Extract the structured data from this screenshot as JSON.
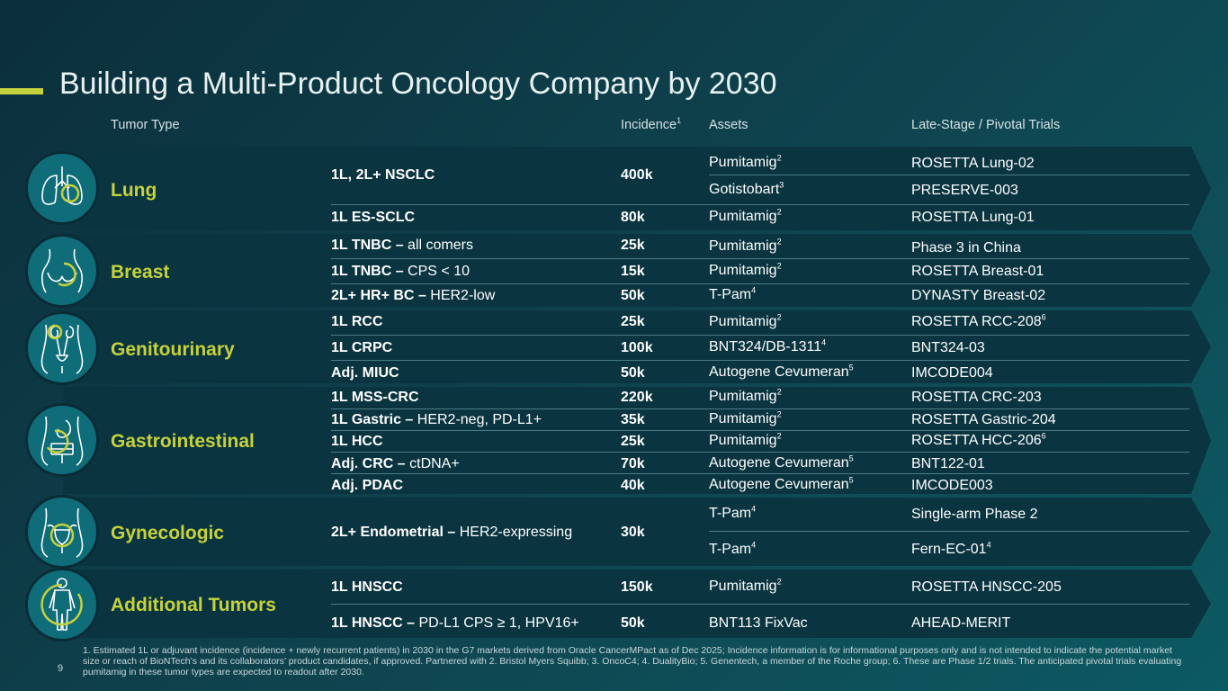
{
  "title": "Building a Multi-Product Oncology Company by 2030",
  "headers": {
    "tumor_type": "Tumor Type",
    "incidence": "Incidence",
    "incidence_sup": "1",
    "assets": "Assets",
    "trials": "Late-Stage / Pivotal Trials"
  },
  "categories": {
    "lung": "Lung",
    "breast": "Breast",
    "genitourinary": "Genitourinary",
    "gastrointestinal": "Gastrointestinal",
    "gynecologic": "Gynecologic",
    "additional": "Additional Tumors"
  },
  "rows": {
    "lung1": {
      "ind_bold": "1L, 2L+ NSCLC",
      "ind_rest": "",
      "incidence": "400k",
      "asset_a": "Pumitamig",
      "asset_a_sup": "2",
      "trial_a": "ROSETTA Lung-02",
      "asset_b": "Gotistobart",
      "asset_b_sup": "3",
      "trial_b": "PRESERVE-003"
    },
    "lung2": {
      "ind_bold": "1L ES-SCLC",
      "ind_rest": "",
      "incidence": "80k",
      "asset": "Pumitamig",
      "asset_sup": "2",
      "trial": "ROSETTA Lung-01",
      "trial_sup": ""
    },
    "br1": {
      "ind_bold": "1L TNBC –",
      "ind_rest": " all comers",
      "incidence": "25k",
      "asset": "Pumitamig",
      "asset_sup": "2",
      "trial": "Phase 3 in China",
      "trial_sup": ""
    },
    "br2": {
      "ind_bold": "1L TNBC –",
      "ind_rest": " CPS < 10",
      "incidence": "15k",
      "asset": "Pumitamig",
      "asset_sup": "2",
      "trial": "ROSETTA Breast-01",
      "trial_sup": ""
    },
    "br3": {
      "ind_bold": "2L+ HR+ BC –",
      "ind_rest": " HER2-low",
      "incidence": "50k",
      "asset": "T-Pam",
      "asset_sup": "4",
      "trial": "DYNASTY Breast-02",
      "trial_sup": ""
    },
    "gu1": {
      "ind_bold": "1L RCC",
      "ind_rest": "",
      "incidence": "25k",
      "asset": "Pumitamig",
      "asset_sup": "2",
      "trial": "ROSETTA RCC-208",
      "trial_sup": "6"
    },
    "gu2": {
      "ind_bold": "1L CRPC",
      "ind_rest": "",
      "incidence": "100k",
      "asset": "BNT324/DB-1311",
      "asset_sup": "4",
      "trial": "BNT324-03",
      "trial_sup": ""
    },
    "gu3": {
      "ind_bold": "Adj. MIUC",
      "ind_rest": "",
      "incidence": "50k",
      "asset": "Autogene Cevumeran",
      "asset_sup": "5",
      "trial": "IMCODE004",
      "trial_sup": ""
    },
    "gi1": {
      "ind_bold": "1L MSS-CRC",
      "ind_rest": "",
      "incidence": "220k",
      "asset": "Pumitamig",
      "asset_sup": "2",
      "trial": "ROSETTA CRC-203",
      "trial_sup": ""
    },
    "gi2": {
      "ind_bold": "1L Gastric –",
      "ind_rest": " HER2-neg, PD-L1+",
      "incidence": "35k",
      "asset": "Pumitamig",
      "asset_sup": "2",
      "trial": "ROSETTA Gastric-204",
      "trial_sup": ""
    },
    "gi3": {
      "ind_bold": "1L HCC",
      "ind_rest": "",
      "incidence": "25k",
      "asset": "Pumitamig",
      "asset_sup": "2",
      "trial": "ROSETTA HCC-206",
      "trial_sup": "6"
    },
    "gi4": {
      "ind_bold": "Adj. CRC –",
      "ind_rest": " ctDNA+",
      "incidence": "70k",
      "asset": "Autogene Cevumeran",
      "asset_sup": "5",
      "trial": "BNT122-01",
      "trial_sup": ""
    },
    "gi5": {
      "ind_bold": "Adj. PDAC",
      "ind_rest": "",
      "incidence": "40k",
      "asset": "Autogene Cevumeran",
      "asset_sup": "5",
      "trial": "IMCODE003",
      "trial_sup": ""
    },
    "gyn1": {
      "ind_bold": "2L+ Endometrial –",
      "ind_rest": " HER2-expressing",
      "incidence": "30k",
      "asset_a": "T-Pam",
      "asset_a_sup": "4",
      "trial_a": "Single-arm Phase 2",
      "asset_b": "T-Pam",
      "asset_b_sup": "4",
      "trial_b": "Fern-EC-01",
      "trial_b_sup": "4"
    },
    "add1": {
      "ind_bold": "1L HNSCC",
      "ind_rest": "",
      "incidence": "150k",
      "asset": "Pumitamig",
      "asset_sup": "2",
      "trial": "ROSETTA HNSCC-205",
      "trial_sup": ""
    },
    "add2": {
      "ind_bold": "1L HNSCC –",
      "ind_rest": " PD-L1 CPS ≥ 1, HPV16+",
      "incidence": "50k",
      "asset": "BNT113 FixVac",
      "asset_sup": "",
      "trial": "AHEAD-MERIT",
      "trial_sup": ""
    }
  },
  "icons": [
    "lungs-icon",
    "breast-icon",
    "kidney-icon",
    "stomach-icon",
    "uterus-icon",
    "body-icon"
  ],
  "colors": {
    "accent": "#c6d23b",
    "band": "#0a3440",
    "circle": "#0f6c79"
  },
  "footnote": "1. Estimated 1L or adjuvant incidence (incidence + newly recurrent patients) in 2030 in the G7 markets derived from Oracle CancerMPact as of Dec 2025; Incidence information is for informational purposes only and is not intended to indicate the potential market size or reach of BioNTech’s and its collaborators’ product candidates, if approved. Partnered with 2. Bristol Myers Squibb; 3. OncoC4; 4. DualityBio; 5. Genentech, a member of the Roche group; 6. These are Phase 1/2 trials. The anticipated pivotal trials evaluating pumitamig in these tumor types are expected to readout after 2030.",
  "page_number": "9"
}
